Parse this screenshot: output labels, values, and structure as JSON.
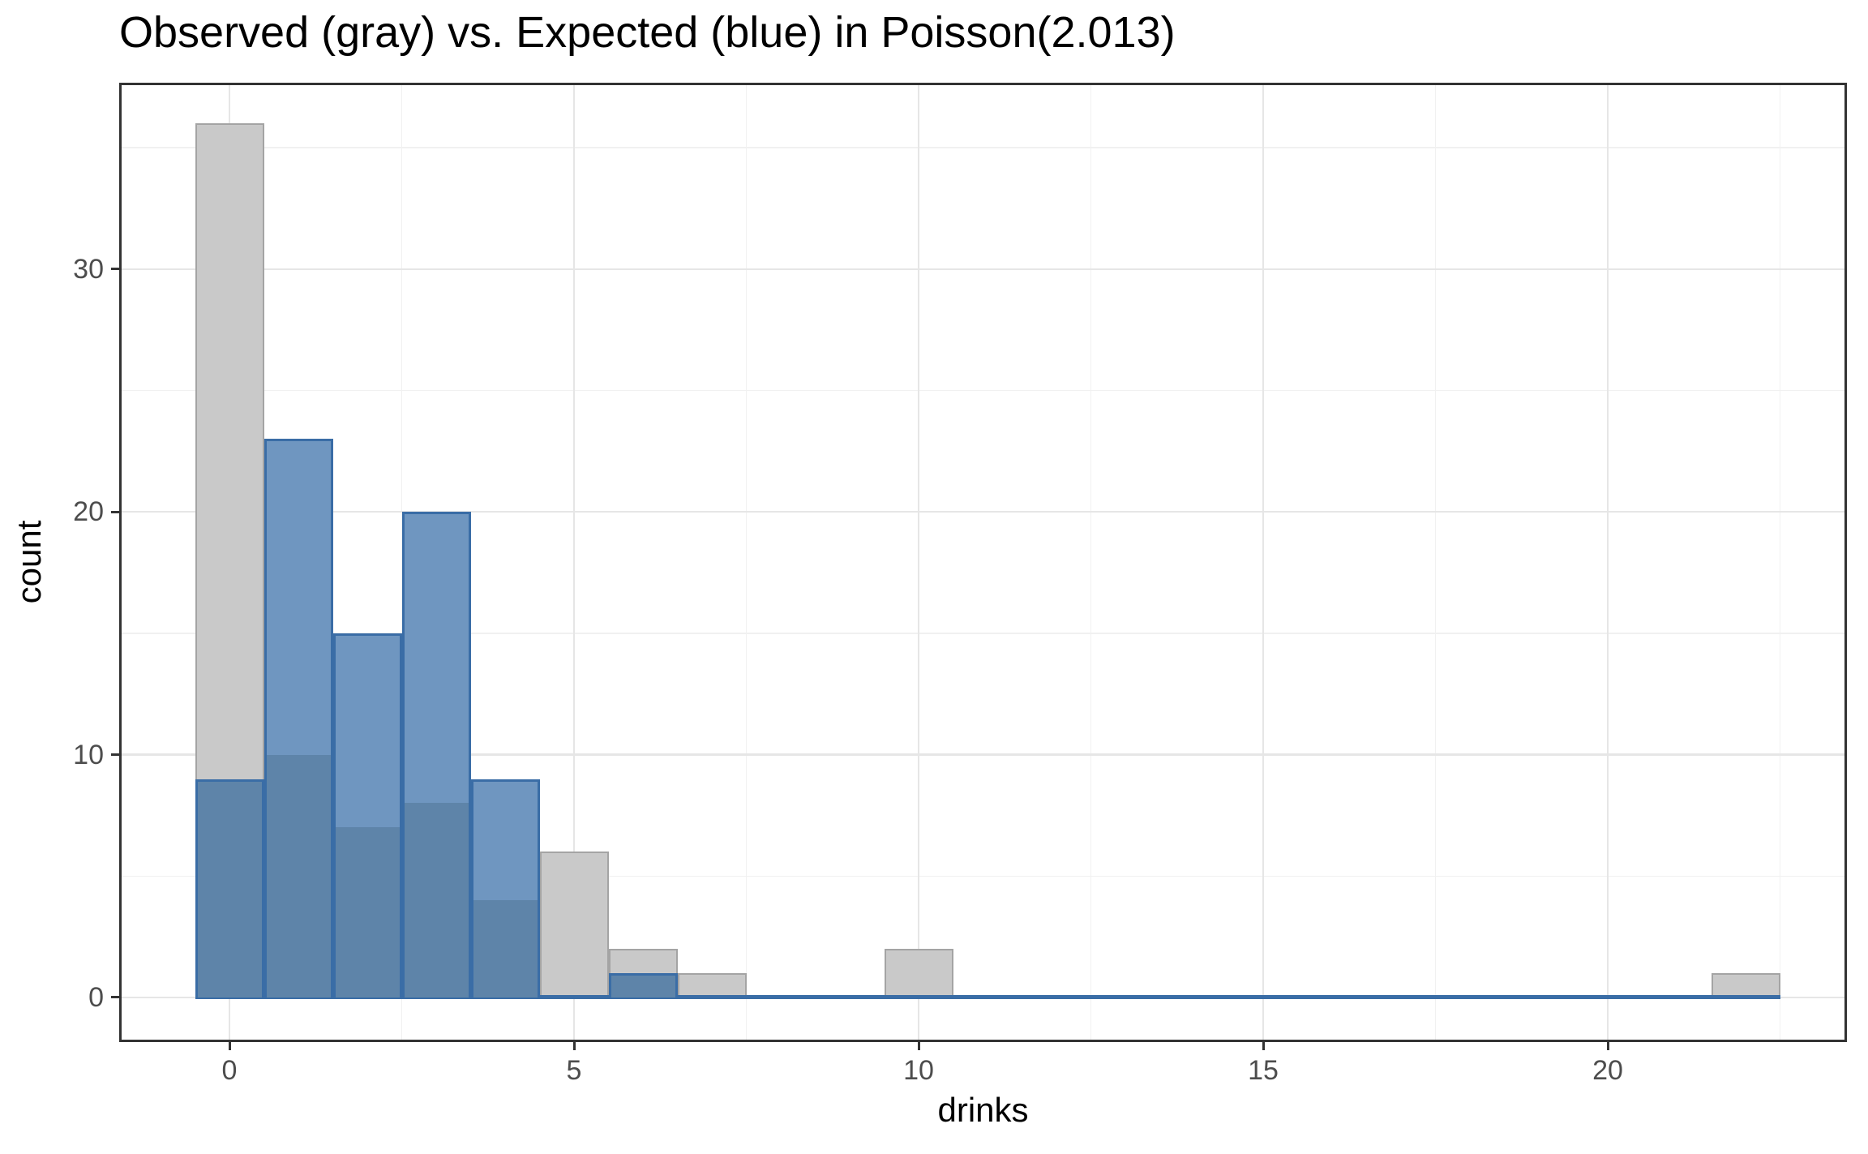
{
  "chart_data": {
    "type": "histogram",
    "title": "Observed (gray) vs. Expected (blue) in Poisson(2.013)",
    "xlabel": "drinks",
    "ylabel": "count",
    "xlim": [
      -1.6,
      23.47
    ],
    "ylim": [
      -1.84,
      37.68
    ],
    "bin_width": 1,
    "grid": true,
    "legend": "none",
    "x_major_ticks": [
      0,
      5,
      10,
      15,
      20
    ],
    "x_minor_gridlines": [
      2.5,
      7.5,
      12.5,
      17.5,
      22.5
    ],
    "y_major_ticks": [
      0,
      10,
      20,
      30
    ],
    "y_minor_gridlines": [
      5,
      15,
      25,
      35
    ],
    "series": [
      {
        "name": "Observed",
        "style": "gray",
        "bins": [
          {
            "x": 0,
            "count": 36
          },
          {
            "x": 1,
            "count": 10
          },
          {
            "x": 2,
            "count": 7
          },
          {
            "x": 3,
            "count": 8
          },
          {
            "x": 4,
            "count": 4
          },
          {
            "x": 5,
            "count": 6
          },
          {
            "x": 6,
            "count": 2
          },
          {
            "x": 7,
            "count": 1
          },
          {
            "x": 10,
            "count": 2
          },
          {
            "x": 22,
            "count": 1
          }
        ]
      },
      {
        "name": "Expected",
        "style": "blue",
        "zero_line_extent": [
          -0.5,
          22.5
        ],
        "bins": [
          {
            "x": 0,
            "count": 9
          },
          {
            "x": 1,
            "count": 23
          },
          {
            "x": 2,
            "count": 15
          },
          {
            "x": 3,
            "count": 20
          },
          {
            "x": 4,
            "count": 9
          },
          {
            "x": 6,
            "count": 1
          }
        ]
      }
    ]
  },
  "colors": {
    "gray_fill": "#c9c9c9",
    "gray_border": "#a4a4a4",
    "blue_fill": "#6f96c0",
    "blue_overlap": "#5e84a9",
    "blue_border": "#3a6da6",
    "grid_major": "#e6e6e6",
    "grid_minor": "#f1f1f1",
    "axis": "#333333",
    "tick_label": "#4d4d4d",
    "title_color": "#000000"
  }
}
